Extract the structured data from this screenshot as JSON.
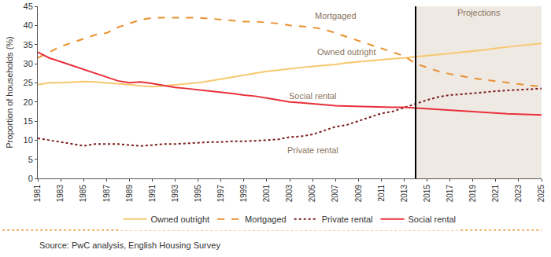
{
  "chart_data": {
    "type": "line",
    "y_label": "Proportion of households (%)",
    "x": [
      1981,
      1982,
      1983,
      1984,
      1985,
      1986,
      1987,
      1988,
      1989,
      1990,
      1991,
      1992,
      1993,
      1994,
      1995,
      1996,
      1997,
      1998,
      1999,
      2000,
      2001,
      2002,
      2003,
      2004,
      2005,
      2006,
      2007,
      2008,
      2009,
      2010,
      2011,
      2012,
      2013,
      2014,
      2015,
      2016,
      2017,
      2018,
      2019,
      2020,
      2021,
      2022,
      2023,
      2024,
      2025
    ],
    "xlim": [
      1981,
      2025
    ],
    "xticks": [
      1981,
      1983,
      1985,
      1987,
      1989,
      1991,
      1993,
      1995,
      1997,
      1999,
      2001,
      2003,
      2005,
      2007,
      2009,
      2011,
      2013,
      2015,
      2017,
      2019,
      2021,
      2023,
      2025
    ],
    "ylim": [
      0,
      45
    ],
    "yticks": [
      0,
      5,
      10,
      15,
      20,
      25,
      30,
      35,
      40,
      45
    ],
    "grid": false,
    "legend": "bottom",
    "projection_start": 2014,
    "projection_label": "Projections",
    "series": [
      {
        "name": "Owned outright",
        "color": "#f6c86e",
        "line_style": "solid",
        "values": [
          24.5,
          25,
          25,
          25.2,
          25.3,
          25.2,
          25,
          24.8,
          24.5,
          24.2,
          24,
          24.2,
          24.5,
          24.7,
          25,
          25.5,
          26,
          26.5,
          27,
          27.5,
          28,
          28.3,
          28.7,
          29,
          29.3,
          29.5,
          29.8,
          30.2,
          30.5,
          30.8,
          31,
          31.3,
          31.5,
          31.8,
          32,
          32.3,
          32.7,
          33,
          33.3,
          33.6,
          34,
          34.4,
          34.7,
          35,
          35.3
        ]
      },
      {
        "name": "Mortgaged",
        "color": "#e8912e",
        "line_style": "dash",
        "values": [
          31.5,
          33,
          34.5,
          35.5,
          36.5,
          37.5,
          38,
          39.5,
          40.5,
          41.5,
          42,
          42,
          42,
          42,
          42,
          41.8,
          41.5,
          41.3,
          41,
          41,
          40.8,
          40.5,
          40,
          39.7,
          39.5,
          39,
          38,
          37,
          36,
          35,
          34,
          33,
          32,
          30,
          29,
          28,
          27.3,
          26.7,
          26.2,
          25.8,
          25.4,
          25,
          24.7,
          24.3,
          24
        ]
      },
      {
        "name": "Private rental",
        "color": "#7a1c1c",
        "line_style": "dot",
        "values": [
          10.5,
          10,
          9.5,
          9,
          8.5,
          9,
          9,
          9,
          8.7,
          8.5,
          8.7,
          9,
          9,
          9.2,
          9.3,
          9.5,
          9.5,
          9.7,
          9.7,
          9.8,
          10,
          10.2,
          10.8,
          11,
          11.5,
          12.5,
          13.5,
          14,
          15,
          16,
          17,
          17.5,
          18.5,
          19.5,
          20.5,
          21.3,
          21.8,
          22,
          22.3,
          22.5,
          22.8,
          23,
          23.2,
          23.3,
          23.5
        ]
      },
      {
        "name": "Social rental",
        "color": "#e8303a",
        "line_style": "solid",
        "values": [
          33,
          31.5,
          30.5,
          29.5,
          28.5,
          27.5,
          26.5,
          25.5,
          25,
          25.2,
          24.8,
          24.3,
          23.8,
          23.5,
          23.2,
          22.8,
          22.5,
          22.2,
          21.8,
          21.5,
          21,
          20.5,
          20,
          19.8,
          19.5,
          19.2,
          19,
          18.9,
          18.8,
          18.7,
          18.7,
          18.6,
          18.6,
          18.4,
          18.2,
          18,
          17.8,
          17.6,
          17.4,
          17.2,
          17,
          16.9,
          16.8,
          16.7,
          16.6
        ]
      }
    ],
    "annotations": [
      {
        "text": "Mortgaged",
        "x": 2007,
        "y": 42.6
      },
      {
        "text": "Owned outright",
        "x": 2008,
        "y": 33
      },
      {
        "text": "Social rental",
        "x": 2005,
        "y": 21.6
      },
      {
        "text": "Private rental",
        "x": 2005,
        "y": 7.4
      }
    ],
    "source": "Source: PwC analysis, English Housing Survey"
  }
}
